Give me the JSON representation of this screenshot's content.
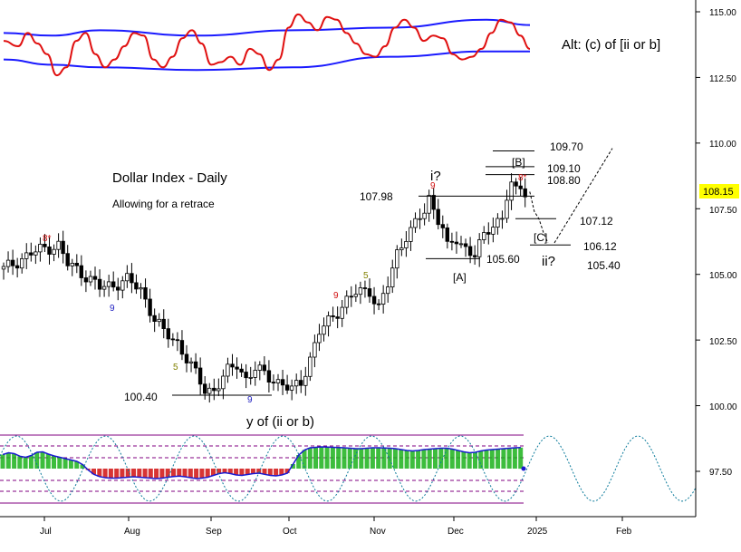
{
  "chart_data": {
    "type": "candlestick",
    "title": "Dollar Index - Daily",
    "subtitle": "Allowing for a retrace",
    "alt_label": "Alt: (c) of [ii or b]",
    "y_axis": {
      "ticks": [
        "115.00",
        "112.50",
        "110.00",
        "107.50",
        "105.00",
        "102.50",
        "100.00",
        "97.50"
      ],
      "range": [
        96.5,
        115.4
      ],
      "current_price": "108.15",
      "current_price_color": "#ffff00"
    },
    "x_axis": {
      "ticks": [
        "Jul",
        "Aug",
        "Sep",
        "Oct",
        "Nov",
        "Dec",
        "2025",
        "Feb"
      ]
    },
    "price_path": [
      [
        0,
        105.2
      ],
      [
        6,
        105.8
      ],
      [
        9,
        106.0
      ],
      [
        12,
        106.1
      ],
      [
        14,
        105.4
      ],
      [
        16,
        105.2
      ],
      [
        19,
        104.8
      ],
      [
        21,
        104.5
      ],
      [
        24,
        104.6
      ],
      [
        27,
        104.8
      ],
      [
        30,
        104.4
      ],
      [
        33,
        103.3
      ],
      [
        35,
        102.8
      ],
      [
        38,
        102.4
      ],
      [
        40,
        101.8
      ],
      [
        42,
        101.2
      ],
      [
        44,
        100.6
      ],
      [
        46,
        100.6
      ],
      [
        49,
        101.3
      ],
      [
        51,
        101.6
      ],
      [
        53,
        101.0
      ],
      [
        55,
        101.4
      ],
      [
        58,
        101.1
      ],
      [
        61,
        100.8
      ],
      [
        63,
        100.6
      ],
      [
        65,
        100.9
      ],
      [
        67,
        101.8
      ],
      [
        69,
        102.8
      ],
      [
        71,
        103.2
      ],
      [
        73,
        103.6
      ],
      [
        75,
        104.0
      ],
      [
        77,
        104.3
      ],
      [
        80,
        104.4
      ],
      [
        82,
        103.7
      ],
      [
        84,
        104.6
      ],
      [
        86,
        105.8
      ],
      [
        88,
        106.5
      ],
      [
        90,
        106.9
      ],
      [
        92,
        107.4
      ],
      [
        93,
        107.9
      ],
      [
        94,
        107.5
      ],
      [
        96,
        106.8
      ],
      [
        97,
        106.0
      ],
      [
        99,
        106.3
      ],
      [
        101,
        106.0
      ],
      [
        103,
        105.8
      ],
      [
        105,
        106.4
      ],
      [
        107,
        106.9
      ],
      [
        109,
        107.2
      ],
      [
        110,
        108.0
      ],
      [
        111,
        108.4
      ],
      [
        112,
        108.1
      ],
      [
        113,
        108.3
      ],
      [
        114,
        108.15
      ]
    ],
    "projection_path": [
      [
        115,
        108.15
      ],
      [
        116,
        107.4
      ],
      [
        117,
        107.12
      ],
      [
        118,
        106.6
      ],
      [
        119,
        106.2
      ]
    ],
    "projection_rise": [
      [
        119,
        106.2
      ],
      [
        128,
        109.8
      ]
    ],
    "levels": [
      {
        "label": "109.70",
        "value": 109.7
      },
      {
        "label": "109.10",
        "value": 109.1
      },
      {
        "label": "108.80",
        "value": 108.8
      },
      {
        "label": "107.98",
        "value": 107.98
      },
      {
        "label": "107.12",
        "value": 107.12
      },
      {
        "label": "106.12",
        "value": 106.12
      },
      {
        "label": "105.60",
        "value": 105.6
      },
      {
        "label": "105.40",
        "value": 105.4
      },
      {
        "label": "100.40",
        "value": 100.4
      }
    ],
    "wave_labels": {
      "i": "i?",
      "B": "[B]",
      "C": "[C]",
      "A": "[A]",
      "ii": "ii?",
      "low": "y of (ii or b)"
    },
    "markers": [
      "8*",
      "9",
      "5",
      "9",
      "5",
      "9",
      "9",
      "8*"
    ],
    "oscillator_top": {
      "red_series": [
        [
          0,
          113.9
        ],
        [
          3,
          113.7
        ],
        [
          5,
          114.2
        ],
        [
          7,
          113.8
        ],
        [
          9,
          113.4
        ],
        [
          11,
          112.6
        ],
        [
          13,
          112.9
        ],
        [
          15,
          113.9
        ],
        [
          17,
          114.2
        ],
        [
          19,
          113.4
        ],
        [
          21,
          112.9
        ],
        [
          23,
          113.2
        ],
        [
          25,
          113.7
        ],
        [
          27,
          114.2
        ],
        [
          29,
          114.1
        ],
        [
          31,
          113.2
        ],
        [
          33,
          112.9
        ],
        [
          35,
          113.3
        ],
        [
          37,
          114.0
        ],
        [
          39,
          114.3
        ],
        [
          41,
          113.8
        ],
        [
          43,
          113.0
        ],
        [
          45,
          113.1
        ],
        [
          47,
          113.3
        ],
        [
          49,
          113.0
        ],
        [
          51,
          113.6
        ],
        [
          53,
          113.4
        ],
        [
          55,
          112.8
        ],
        [
          57,
          113.2
        ],
        [
          59,
          114.4
        ],
        [
          61,
          114.9
        ],
        [
          63,
          114.6
        ],
        [
          65,
          114.3
        ],
        [
          67,
          114.8
        ],
        [
          69,
          114.7
        ],
        [
          71,
          114.2
        ],
        [
          73,
          113.8
        ],
        [
          75,
          113.4
        ],
        [
          77,
          113.3
        ],
        [
          79,
          113.7
        ],
        [
          81,
          114.4
        ],
        [
          83,
          114.7
        ],
        [
          85,
          114.4
        ],
        [
          87,
          113.9
        ],
        [
          89,
          114.1
        ],
        [
          91,
          114.0
        ],
        [
          93,
          113.4
        ],
        [
          95,
          113.2
        ],
        [
          97,
          113.3
        ],
        [
          99,
          113.6
        ],
        [
          101,
          114.2
        ],
        [
          103,
          114.7
        ],
        [
          105,
          114.6
        ],
        [
          107,
          114.1
        ],
        [
          109,
          113.6
        ]
      ],
      "blue_upper": [
        [
          0,
          114.2
        ],
        [
          10,
          114.1
        ],
        [
          20,
          114.3
        ],
        [
          40,
          114.1
        ],
        [
          60,
          114.3
        ],
        [
          80,
          114.4
        ],
        [
          100,
          114.7
        ],
        [
          109,
          114.5
        ]
      ],
      "blue_lower": [
        [
          0,
          113.2
        ],
        [
          10,
          113.0
        ],
        [
          20,
          112.9
        ],
        [
          40,
          112.8
        ],
        [
          60,
          112.9
        ],
        [
          80,
          113.3
        ],
        [
          100,
          113.5
        ],
        [
          109,
          113.5
        ]
      ]
    },
    "oscillator_bottom": {
      "bars": [
        0.62,
        0.7,
        0.66,
        0.55,
        0.5,
        0.58,
        0.72,
        0.74,
        0.64,
        0.56,
        0.5,
        0.44,
        0.38,
        0.32,
        0.18,
        -0.06,
        -0.25,
        -0.35,
        -0.4,
        -0.42,
        -0.42,
        -0.4,
        -0.38,
        -0.36,
        -0.38,
        -0.4,
        -0.42,
        -0.44,
        -0.42,
        -0.38,
        -0.35,
        -0.33,
        -0.36,
        -0.4,
        -0.44,
        -0.42,
        -0.38,
        -0.3,
        -0.22,
        -0.18,
        -0.22,
        -0.28,
        -0.3,
        -0.26,
        -0.22,
        -0.2,
        -0.25,
        -0.3,
        -0.32,
        -0.28,
        -0.2,
        0.2,
        0.6,
        0.82,
        0.92,
        0.94,
        0.96,
        0.95,
        0.94,
        0.93,
        0.92,
        0.9,
        0.88,
        0.88,
        0.9,
        0.92,
        0.92,
        0.91,
        0.9,
        0.88,
        0.84,
        0.8,
        0.78,
        0.8,
        0.84,
        0.86,
        0.88,
        0.9,
        0.9,
        0.86,
        0.8,
        0.74,
        0.7,
        0.72,
        0.78,
        0.82,
        0.84,
        0.86,
        0.88,
        0.9,
        0.92,
        0.93
      ],
      "positive_color": "#1bb21b",
      "negative_color": "#d01010"
    }
  }
}
